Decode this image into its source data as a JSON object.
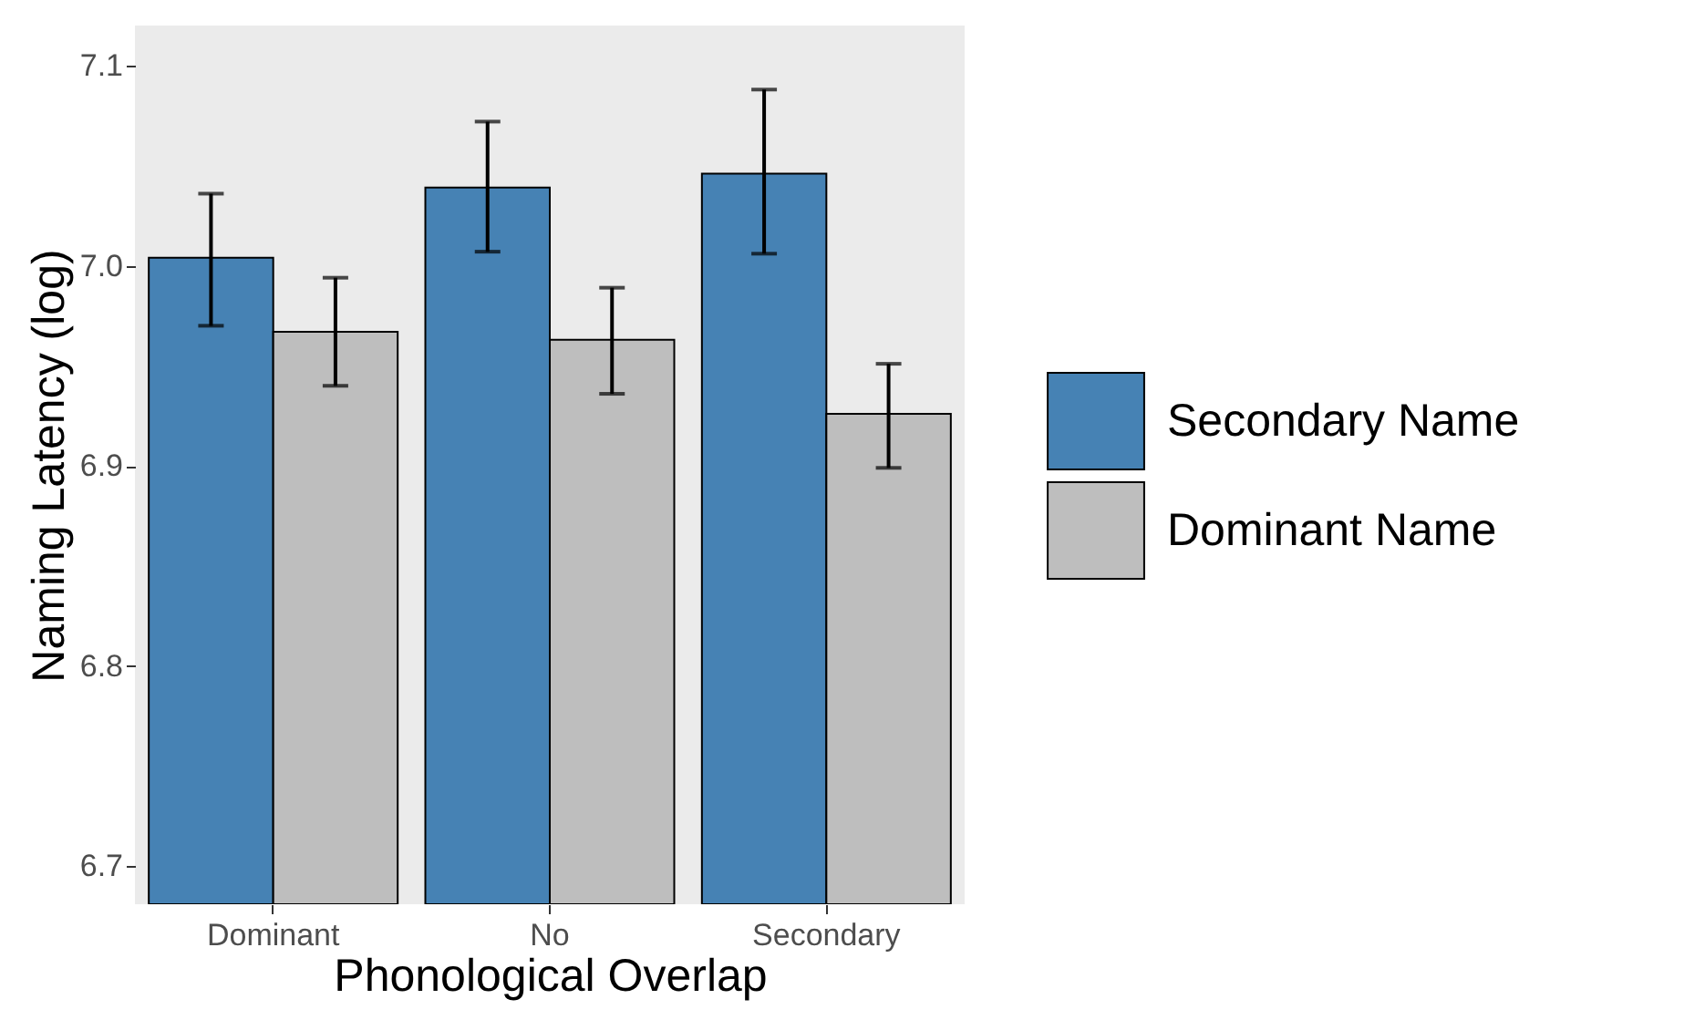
{
  "chart_data": {
    "type": "bar",
    "xlabel": "Phonological Overlap",
    "ylabel": "Naming Latency (log)",
    "categories": [
      "Dominant",
      "No",
      "Secondary"
    ],
    "series": [
      {
        "name": "Secondary Name",
        "color": "#4682b4",
        "values": [
          7.004,
          7.039,
          7.046
        ],
        "errors": [
          [
            6.97,
            7.036
          ],
          [
            7.007,
            7.072
          ],
          [
            7.006,
            7.088
          ]
        ]
      },
      {
        "name": "Dominant Name",
        "color": "#bebebe",
        "values": [
          6.967,
          6.963,
          6.926
        ],
        "errors": [
          [
            6.94,
            6.994
          ],
          [
            6.936,
            6.989
          ],
          [
            6.899,
            6.951
          ]
        ]
      }
    ],
    "ylim": [
      6.681,
      7.12
    ],
    "yticks": [
      6.7,
      6.8,
      6.9,
      {
        "value": 7,
        "label": "7.0"
      },
      7.1
    ],
    "grid": false,
    "legend": "right"
  }
}
